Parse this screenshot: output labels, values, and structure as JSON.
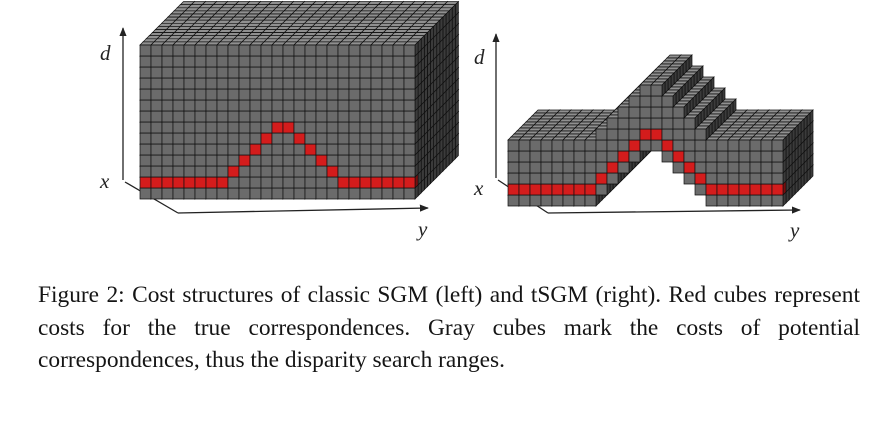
{
  "figure": {
    "left_panel": {
      "axes": {
        "vertical": "d",
        "depth": "x",
        "horizontal": "y"
      }
    },
    "right_panel": {
      "axes": {
        "vertical": "d",
        "depth": "x",
        "horizontal": "y"
      }
    }
  },
  "caption": {
    "label": "Figure 2:",
    "text": "Cost structures of classic SGM (left) and tSGM (right). Red cubes represent costs for the true correspondences. Gray cubes mark the costs of potential correspondences, thus the disparity search ranges."
  },
  "colors": {
    "gray_cube": "#6b6b6b",
    "red_cube": "#d41c1c",
    "cube_edge": "#111111",
    "axis": "#222222"
  }
}
